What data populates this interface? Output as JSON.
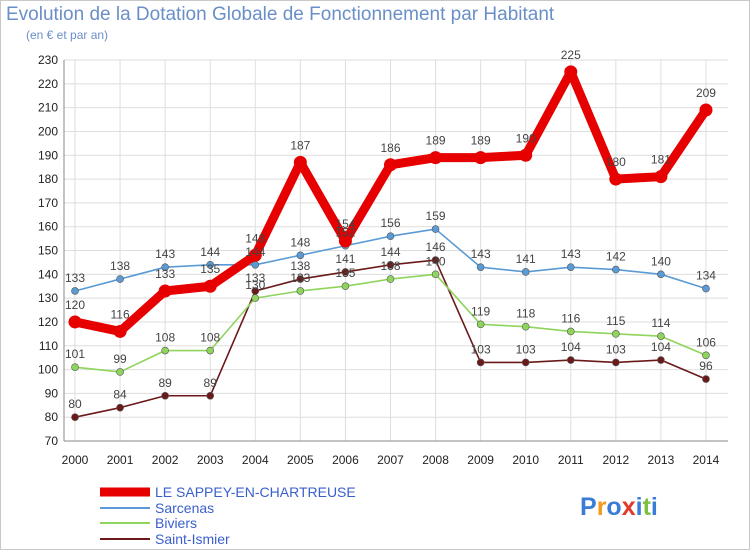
{
  "header": {
    "title": "Evolution de la Dotation Globale de Fonctionnement par Habitant",
    "subtitle": "(en € et par an)"
  },
  "logo": {
    "text": "Proxiti",
    "letters": [
      "P",
      "r",
      "o",
      "x",
      "i",
      "t",
      "i"
    ],
    "colors": [
      "#3a7dd8",
      "#f39a1e",
      "#3a7dd8",
      "#e23a2a",
      "#3a7dd8",
      "#7ac142",
      "#3a7dd8"
    ]
  },
  "chart_data": {
    "type": "line",
    "x": [
      "2000",
      "2001",
      "2002",
      "2003",
      "2004",
      "2005",
      "2006",
      "2007",
      "2008",
      "2009",
      "2010",
      "2011",
      "2012",
      "2013",
      "2014"
    ],
    "ylim": [
      70,
      230
    ],
    "yticks": [
      70,
      80,
      90,
      100,
      110,
      120,
      130,
      140,
      150,
      160,
      170,
      180,
      190,
      200,
      210,
      220,
      230
    ],
    "grid": true,
    "legend_position": "bottom-left",
    "series": [
      {
        "name": "LE SAPPEY-EN-CHARTREUSE",
        "color": "#e60000",
        "values": [
          120,
          116,
          133,
          135,
          148,
          187,
          154,
          186,
          189,
          189,
          190,
          225,
          180,
          181,
          209
        ]
      },
      {
        "name": "Sarcenas",
        "color": "#5b9bd5",
        "values": [
          133,
          138,
          143,
          144,
          144,
          148,
          152,
          156,
          159,
          143,
          141,
          143,
          142,
          140,
          134
        ]
      },
      {
        "name": "Biviers",
        "color": "#8fd45c",
        "values": [
          101,
          99,
          108,
          108,
          130,
          133,
          135,
          138,
          140,
          119,
          118,
          116,
          115,
          114,
          106
        ]
      },
      {
        "name": "Saint-Ismier",
        "color": "#6b1a1a",
        "values": [
          80,
          84,
          89,
          89,
          133,
          138,
          141,
          144,
          146,
          103,
          103,
          104,
          103,
          104,
          96
        ]
      }
    ]
  }
}
